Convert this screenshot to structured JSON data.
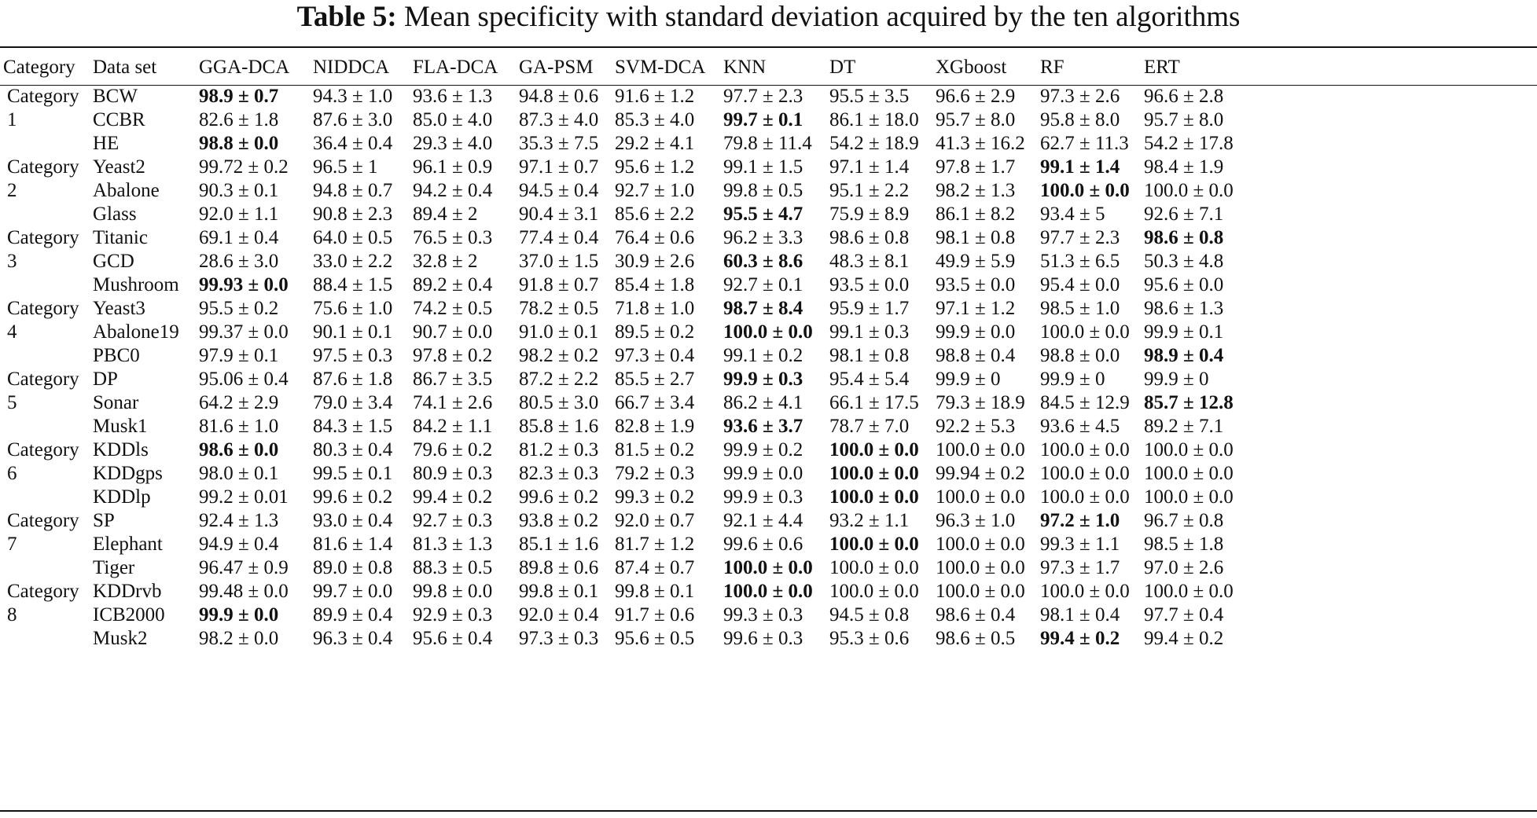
{
  "caption": {
    "label": "Table 5:",
    "text": "Mean specificity with standard deviation acquired by the ten algorithms"
  },
  "headers": [
    "Category",
    "Data set",
    "GGA-DCA",
    "NIDDCA",
    "FLA-DCA",
    "GA-PSM",
    "SVM-DCA",
    "KNN",
    "DT",
    "XGboost",
    "RF",
    "ERT"
  ],
  "categories": [
    {
      "line1": "Category",
      "line2": "1"
    },
    {
      "line1": "Category",
      "line2": "2"
    },
    {
      "line1": "Category",
      "line2": "3"
    },
    {
      "line1": "Category",
      "line2": "4"
    },
    {
      "line1": "Category",
      "line2": "5"
    },
    {
      "line1": "Category",
      "line2": "6"
    },
    {
      "line1": "Category",
      "line2": "7"
    },
    {
      "line1": "Category",
      "line2": "8"
    }
  ],
  "rows": [
    {
      "dataset": "BCW",
      "values": [
        "98.9 ± 0.7",
        "94.3 ± 1.0",
        "93.6 ± 1.3",
        "94.8 ± 0.6",
        "91.6 ± 1.2",
        "97.7 ± 2.3",
        "95.5 ± 3.5",
        "96.6 ± 2.9",
        "97.3 ± 2.6",
        "96.6 ± 2.8"
      ],
      "bold": [
        0
      ]
    },
    {
      "dataset": "CCBR",
      "values": [
        "82.6 ± 1.8",
        "87.6 ± 3.0",
        "85.0 ± 4.0",
        "87.3 ± 4.0",
        "85.3 ± 4.0",
        "99.7 ± 0.1",
        "86.1 ± 18.0",
        "95.7 ± 8.0",
        "95.8 ± 8.0",
        "95.7 ± 8.0"
      ],
      "bold": [
        5
      ]
    },
    {
      "dataset": "HE",
      "values": [
        "98.8 ± 0.0",
        "36.4 ± 0.4",
        "29.3 ± 4.0",
        "35.3 ± 7.5",
        "29.2 ± 4.1",
        "79.8 ± 11.4",
        "54.2 ± 18.9",
        "41.3 ± 16.2",
        "62.7 ± 11.3",
        "54.2 ± 17.8"
      ],
      "bold": [
        0
      ]
    },
    {
      "dataset": "Yeast2",
      "values": [
        "99.72 ± 0.2",
        "96.5 ± 1",
        "96.1 ± 0.9",
        "97.1 ± 0.7",
        "95.6 ± 1.2",
        "99.1 ± 1.5",
        "97.1 ± 1.4",
        "97.8 ± 1.7",
        "99.1 ± 1.4",
        "98.4 ± 1.9"
      ],
      "bold": [
        8
      ]
    },
    {
      "dataset": "Abalone",
      "values": [
        "90.3 ± 0.1",
        "94.8 ± 0.7",
        "94.2 ± 0.4",
        "94.5 ± 0.4",
        "92.7 ± 1.0",
        "99.8 ± 0.5",
        "95.1 ± 2.2",
        "98.2 ± 1.3",
        "100.0 ± 0.0",
        "100.0 ± 0.0"
      ],
      "bold": [
        8
      ]
    },
    {
      "dataset": "Glass",
      "values": [
        "92.0 ± 1.1",
        "90.8 ± 2.3",
        "89.4 ± 2",
        "90.4 ± 3.1",
        "85.6 ± 2.2",
        "95.5 ± 4.7",
        "75.9 ± 8.9",
        "86.1 ± 8.2",
        "93.4 ± 5",
        "92.6 ± 7.1"
      ],
      "bold": [
        5
      ]
    },
    {
      "dataset": "Titanic",
      "values": [
        "69.1 ± 0.4",
        "64.0 ± 0.5",
        "76.5 ± 0.3",
        "77.4 ± 0.4",
        "76.4 ± 0.6",
        "96.2 ± 3.3",
        "98.6 ± 0.8",
        "98.1 ± 0.8",
        "97.7 ± 2.3",
        "98.6 ± 0.8"
      ],
      "bold": [
        9
      ]
    },
    {
      "dataset": "GCD",
      "values": [
        "28.6 ± 3.0",
        "33.0 ± 2.2",
        "32.8 ± 2",
        "37.0 ± 1.5",
        "30.9 ± 2.6",
        "60.3 ± 8.6",
        "48.3 ± 8.1",
        "49.9 ± 5.9",
        "51.3 ± 6.5",
        "50.3 ± 4.8"
      ],
      "bold": [
        5
      ]
    },
    {
      "dataset": "Mushroom",
      "values": [
        "99.93 ± 0.0",
        "88.4 ± 1.5",
        "89.2 ± 0.4",
        "91.8 ± 0.7",
        "85.4 ± 1.8",
        "92.7 ± 0.1",
        "93.5 ± 0.0",
        "93.5 ± 0.0",
        "95.4 ± 0.0",
        "95.6 ± 0.0"
      ],
      "bold": [
        0
      ]
    },
    {
      "dataset": "Yeast3",
      "values": [
        "95.5 ± 0.2",
        "75.6 ± 1.0",
        "74.2 ± 0.5",
        "78.2 ± 0.5",
        "71.8 ± 1.0",
        "98.7 ± 8.4",
        "95.9 ± 1.7",
        "97.1 ± 1.2",
        "98.5 ± 1.0",
        "98.6 ± 1.3"
      ],
      "bold": [
        5
      ]
    },
    {
      "dataset": "Abalone19",
      "values": [
        "99.37 ± 0.0",
        "90.1 ± 0.1",
        "90.7 ± 0.0",
        "91.0 ± 0.1",
        "89.5 ± 0.2",
        "100.0 ± 0.0",
        "99.1 ± 0.3",
        "99.9 ± 0.0",
        "100.0 ± 0.0",
        "99.9 ± 0.1"
      ],
      "bold": [
        5
      ]
    },
    {
      "dataset": "PBC0",
      "values": [
        "97.9 ± 0.1",
        "97.5 ± 0.3",
        "97.8 ± 0.2",
        "98.2 ± 0.2",
        "97.3 ± 0.4",
        "99.1 ± 0.2",
        "98.1 ± 0.8",
        "98.8 ± 0.4",
        "98.8 ± 0.0",
        "98.9 ± 0.4"
      ],
      "bold": [
        9
      ]
    },
    {
      "dataset": "DP",
      "values": [
        "95.06 ± 0.4",
        "87.6 ± 1.8",
        "86.7 ± 3.5",
        "87.2 ± 2.2",
        "85.5 ± 2.7",
        "99.9 ± 0.3",
        "95.4 ± 5.4",
        "99.9 ± 0",
        "99.9 ± 0",
        "99.9 ± 0"
      ],
      "bold": [
        5
      ]
    },
    {
      "dataset": "Sonar",
      "values": [
        "64.2 ± 2.9",
        "79.0 ± 3.4",
        "74.1 ± 2.6",
        "80.5 ± 3.0",
        "66.7 ± 3.4",
        "86.2 ± 4.1",
        "66.1 ± 17.5",
        "79.3 ± 18.9",
        "84.5 ± 12.9",
        "85.7 ± 12.8"
      ],
      "bold": [
        9
      ]
    },
    {
      "dataset": "Musk1",
      "values": [
        "81.6 ± 1.0",
        "84.3 ± 1.5",
        "84.2 ± 1.1",
        "85.8 ± 1.6",
        "82.8 ± 1.9",
        "93.6 ± 3.7",
        "78.7 ± 7.0",
        "92.2 ± 5.3",
        "93.6 ± 4.5",
        "89.2 ± 7.1"
      ],
      "bold": [
        5
      ]
    },
    {
      "dataset": "KDDls",
      "values": [
        "98.6 ± 0.0",
        "80.3 ± 0.4",
        "79.6 ± 0.2",
        "81.2 ± 0.3",
        "81.5 ± 0.2",
        "99.9 ± 0.2",
        "100.0 ± 0.0",
        "100.0 ± 0.0",
        "100.0 ± 0.0",
        "100.0 ± 0.0"
      ],
      "bold": [
        0,
        6
      ]
    },
    {
      "dataset": "KDDgps",
      "values": [
        "98.0 ± 0.1",
        "99.5 ± 0.1",
        "80.9 ± 0.3",
        "82.3 ± 0.3",
        "79.2 ± 0.3",
        "99.9 ± 0.0",
        "100.0 ± 0.0",
        "99.94 ± 0.2",
        "100.0 ± 0.0",
        "100.0 ± 0.0"
      ],
      "bold": [
        6
      ]
    },
    {
      "dataset": "KDDlp",
      "values": [
        "99.2 ± 0.01",
        "99.6 ± 0.2",
        "99.4 ± 0.2",
        "99.6 ± 0.2",
        "99.3 ± 0.2",
        "99.9 ± 0.3",
        "100.0 ± 0.0",
        "100.0 ± 0.0",
        "100.0 ± 0.0",
        "100.0 ± 0.0"
      ],
      "bold": [
        6
      ]
    },
    {
      "dataset": "SP",
      "values": [
        "92.4 ± 1.3",
        "93.0 ± 0.4",
        "92.7 ± 0.3",
        "93.8 ± 0.2",
        "92.0 ± 0.7",
        "92.1 ± 4.4",
        "93.2 ± 1.1",
        "96.3 ± 1.0",
        "97.2 ± 1.0",
        "96.7 ± 0.8"
      ],
      "bold": [
        8
      ]
    },
    {
      "dataset": "Elephant",
      "values": [
        "94.9 ± 0.4",
        "81.6 ± 1.4",
        "81.3 ± 1.3",
        "85.1 ± 1.6",
        "81.7 ± 1.2",
        "99.6 ± 0.6",
        "100.0 ± 0.0",
        "100.0 ± 0.0",
        "99.3 ± 1.1",
        "98.5 ± 1.8"
      ],
      "bold": [
        6
      ]
    },
    {
      "dataset": "Tiger",
      "values": [
        "96.47 ± 0.9",
        "89.0 ± 0.8",
        "88.3 ± 0.5",
        "89.8 ± 0.6",
        "87.4 ± 0.7",
        "100.0 ± 0.0",
        "100.0 ± 0.0",
        "100.0 ± 0.0",
        "97.3 ± 1.7",
        "97.0 ± 2.6"
      ],
      "bold": [
        5
      ]
    },
    {
      "dataset": "KDDrvb",
      "values": [
        "99.48 ± 0.0",
        "99.7 ± 0.0",
        "99.8 ± 0.0",
        "99.8 ± 0.1",
        "99.8 ± 0.1",
        "100.0 ± 0.0",
        "100.0 ± 0.0",
        "100.0 ± 0.0",
        "100.0 ± 0.0",
        "100.0 ± 0.0"
      ],
      "bold": [
        5
      ]
    },
    {
      "dataset": "ICB2000",
      "values": [
        "99.9 ± 0.0",
        "89.9 ± 0.4",
        "92.9 ± 0.3",
        "92.0 ± 0.4",
        "91.7 ± 0.6",
        "99.3 ± 0.3",
        "94.5 ± 0.8",
        "98.6 ± 0.4",
        "98.1 ± 0.4",
        "97.7 ± 0.4"
      ],
      "bold": [
        0
      ]
    },
    {
      "dataset": "Musk2",
      "values": [
        "98.2 ± 0.0",
        "96.3 ± 0.4",
        "95.6 ± 0.4",
        "97.3 ± 0.3",
        "95.6 ± 0.5",
        "99.6 ± 0.3",
        "95.3 ± 0.6",
        "98.6 ± 0.5",
        "99.4 ± 0.2",
        "99.4 ± 0.2"
      ],
      "bold": [
        8
      ]
    }
  ]
}
